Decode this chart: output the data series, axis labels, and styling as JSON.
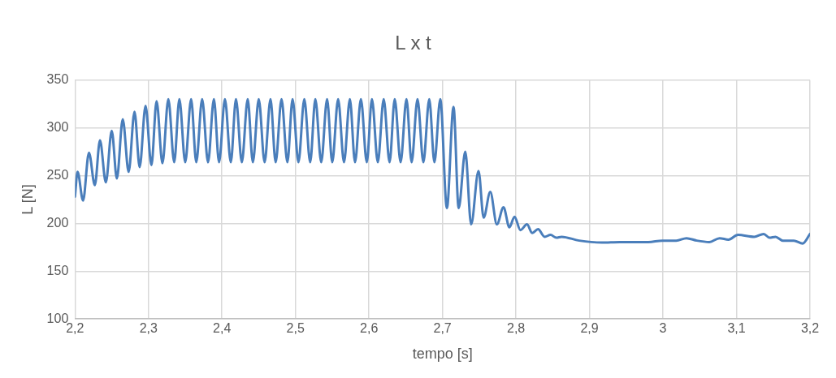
{
  "chart_data": {
    "type": "line",
    "title": "L x t",
    "xlabel": "tempo [s]",
    "ylabel": "L [N]",
    "series": [
      {
        "color": "#4a7ebb",
        "x": [
          2.2,
          2.2035,
          2.211,
          2.219,
          2.227,
          2.234,
          2.242,
          2.25,
          2.257,
          2.265,
          2.273,
          2.281,
          2.288,
          2.296,
          2.304,
          2.311,
          2.319,
          2.327,
          2.335,
          2.342,
          2.35,
          2.358,
          2.365,
          2.373,
          2.381,
          2.389,
          2.396,
          2.404,
          2.412,
          2.419,
          2.427,
          2.435,
          2.442,
          2.45,
          2.458,
          2.466,
          2.473,
          2.481,
          2.489,
          2.496,
          2.504,
          2.512,
          2.52,
          2.527,
          2.535,
          2.543,
          2.55,
          2.558,
          2.566,
          2.574,
          2.581,
          2.589,
          2.597,
          2.604,
          2.612,
          2.62,
          2.628,
          2.635,
          2.643,
          2.651,
          2.658,
          2.666,
          2.674,
          2.682,
          2.689,
          2.697,
          2.706,
          2.715,
          2.722,
          2.731,
          2.739,
          2.749,
          2.756,
          2.765,
          2.774,
          2.783,
          2.791,
          2.798,
          2.806,
          2.815,
          2.822,
          2.83,
          2.839,
          2.847,
          2.855,
          2.862,
          2.886,
          2.917,
          2.941,
          2.98,
          2.999,
          3.018,
          3.032,
          3.046,
          3.063,
          3.077,
          3.089,
          3.102,
          3.124,
          3.137,
          3.145,
          3.153,
          3.163,
          3.178,
          3.19,
          3.2
        ],
        "values": [
          228,
          254,
          224,
          274,
          240,
          287,
          243,
          297,
          247,
          309,
          254,
          317,
          259,
          323,
          261,
          328,
          263,
          330,
          264,
          330,
          264,
          330,
          264,
          330,
          264,
          330,
          264,
          330,
          264,
          330,
          264,
          330,
          264,
          330,
          264,
          330,
          264,
          330,
          264,
          330,
          264,
          330,
          264,
          330,
          264,
          330,
          264,
          330,
          264,
          330,
          264,
          330,
          264,
          330,
          264,
          330,
          264,
          330,
          264,
          330,
          264,
          330,
          264,
          330,
          264,
          330,
          216,
          322,
          216,
          275,
          199,
          255,
          206,
          233,
          199,
          217,
          196,
          207,
          193,
          199,
          190,
          194,
          186,
          188,
          185,
          186,
          182,
          180,
          180.5,
          180.5,
          182,
          182,
          184.5,
          182,
          180.5,
          184.5,
          183,
          188,
          186,
          189,
          185,
          186,
          182,
          182,
          179,
          189
        ]
      }
    ],
    "xlim": [
      2.2,
      3.2
    ],
    "xticks": [
      {
        "value": 2.2,
        "label": "2,2"
      },
      {
        "value": 2.3,
        "label": "2,3"
      },
      {
        "value": 2.4,
        "label": "2,4"
      },
      {
        "value": 2.5,
        "label": "2,5"
      },
      {
        "value": 2.6,
        "label": "2,6"
      },
      {
        "value": 2.7,
        "label": "2,7"
      },
      {
        "value": 2.8,
        "label": "2,8"
      },
      {
        "value": 2.9,
        "label": "2,9"
      },
      {
        "value": 3,
        "label": "3"
      },
      {
        "value": 3.1,
        "label": "3,1"
      },
      {
        "value": 3.2,
        "label": "3,2"
      }
    ],
    "ylim": [
      100,
      350
    ],
    "yticks": [
      100,
      150,
      200,
      250,
      300,
      350
    ],
    "grid": true,
    "legend": false,
    "marker": "none",
    "line_style": "solid"
  }
}
